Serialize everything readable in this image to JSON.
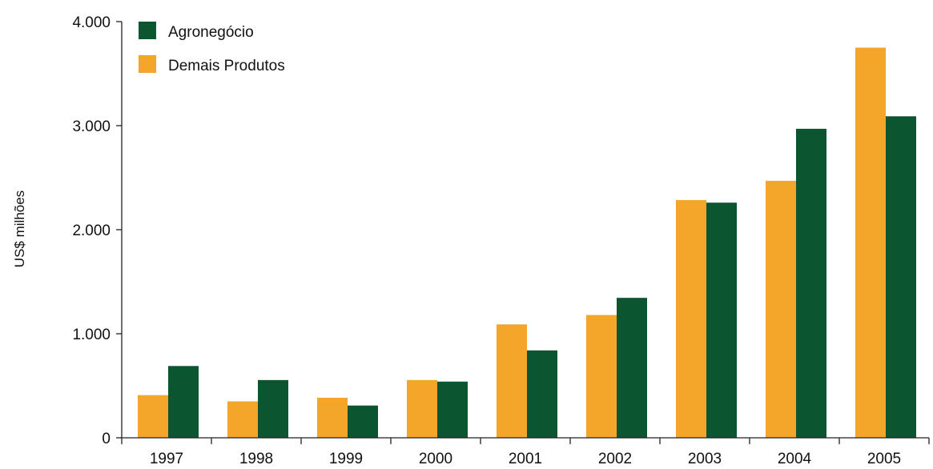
{
  "chart_data": {
    "type": "bar",
    "ylabel": "US$ milhões",
    "xlabel": "",
    "ylim": [
      0,
      4000
    ],
    "yticks": [
      0,
      1000,
      2000,
      3000,
      4000
    ],
    "ytick_labels": [
      "0",
      "1.000",
      "2.000",
      "3.000",
      "4.000"
    ],
    "categories": [
      "1997",
      "1998",
      "1999",
      "2000",
      "2001",
      "2002",
      "2003",
      "2004",
      "2005"
    ],
    "series": [
      {
        "name": "Demais Produtos",
        "color": "#F4A62A",
        "values": [
          410,
          350,
          385,
          555,
          1090,
          1180,
          2285,
          2470,
          3750
        ]
      },
      {
        "name": "Agronegócio",
        "color": "#0B5530",
        "values": [
          690,
          555,
          310,
          540,
          840,
          1345,
          2260,
          2970,
          3090
        ]
      }
    ],
    "legend": {
      "placement": "top-left",
      "entries": [
        {
          "label": "Agronegócio",
          "color": "#0B5530"
        },
        {
          "label": "Demais Produtos",
          "color": "#F4A62A"
        }
      ]
    },
    "grid": false
  }
}
